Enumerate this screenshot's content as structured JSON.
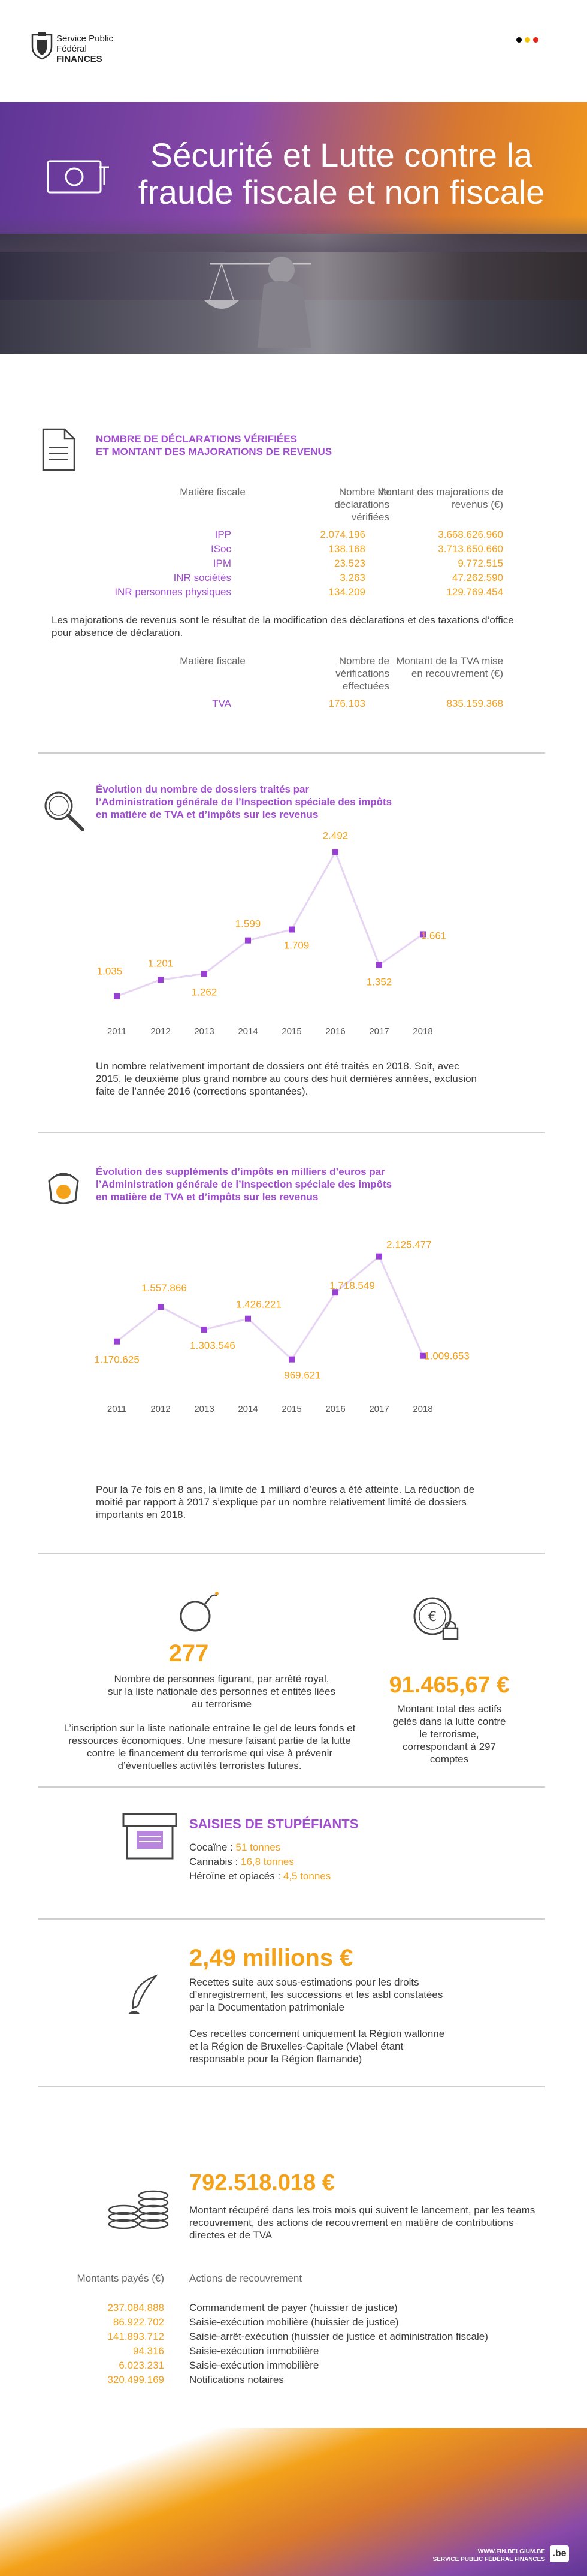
{
  "header": {
    "org_line1": "Service Public",
    "org_line2": "Fédéral",
    "org_line3": "FINANCES",
    "colors": [
      "#000000",
      "#f5c400",
      "#e3251b"
    ]
  },
  "hero": {
    "title_line1": "Sécurité et Lutte contre la",
    "title_line2": "fraude fiscale et non fiscale",
    "gradient": [
      "#6b3aa0",
      "#f29a1e"
    ]
  },
  "declarations": {
    "title_line1": "NOMBRE DE DÉCLARATIONS VÉRIFIÉES",
    "title_line2": "ET MONTANT DES MAJORATIONS DE REVENUS",
    "headers": [
      "Matière fiscale",
      "Nombre de déclarations vérifiées",
      "Montant des majorations de revenus (€)"
    ],
    "rows": [
      {
        "matiere": "IPP",
        "nombre": "2.074.196",
        "montant": "3.668.626.960"
      },
      {
        "matiere": "ISoc",
        "nombre": "138.168",
        "montant": "3.713.650.660"
      },
      {
        "matiere": "IPM",
        "nombre": "23.523",
        "montant": "9.772.515"
      },
      {
        "matiere": "INR sociétés",
        "nombre": "3.263",
        "montant": "47.262.590"
      },
      {
        "matiere": "INR personnes physiques",
        "nombre": "134.209",
        "montant": "129.769.454"
      }
    ],
    "note": "Les majorations de revenus sont le résultat de la modification des déclarations et des taxations d’office pour absence de déclaration.",
    "tva_headers": [
      "Matière fiscale",
      "Nombre de vérifications effectuées",
      "Montant de la TVA mise en recouvrement (€)"
    ],
    "tva_row": {
      "matiere": "TVA",
      "nombre": "176.103",
      "montant": "835.159.368"
    }
  },
  "dossiers": {
    "title_line1": "Évolution du nombre de dossiers traités par",
    "title_line2": "l’Administration générale de l’Inspection spéciale des impôts",
    "title_line3": "en matière de TVA et d’impôts sur les revenus",
    "chart_data": {
      "type": "line",
      "x": [
        "2011",
        "2012",
        "2013",
        "2014",
        "2015",
        "2016",
        "2017",
        "2018"
      ],
      "values": [
        1035,
        1201,
        1262,
        1599,
        1709,
        2492,
        1352,
        1661
      ],
      "labels": [
        "1.035",
        "1.201",
        "1.262",
        "1.599",
        "1.709",
        "2.492",
        "1.352",
        "1.661"
      ]
    },
    "text": "Un nombre relativement important de dossiers ont été traités en 2018. Soit, avec 2015, le deuxième plus grand nombre au cours des huit dernières années, exclusion faite de l’année 2016 (corrections spontanées)."
  },
  "supplements": {
    "title_line1": "Évolution des suppléments d’impôts en milliers d’euros par",
    "title_line2": "l’Administration générale de l’Inspection spéciale des impôts",
    "title_line3": "en matière de TVA et d’impôts sur les revenus",
    "chart_data": {
      "type": "line",
      "x": [
        "2011",
        "2012",
        "2013",
        "2014",
        "2015",
        "2016",
        "2017",
        "2018"
      ],
      "values": [
        1170625,
        1557866,
        1303546,
        1426221,
        969621,
        1718549,
        2125477,
        1009653
      ],
      "labels": [
        "1.170.625",
        "1.557.866",
        "1.303.546",
        "1.426.221",
        "969.621",
        "1.718.549",
        "2.125.477",
        "1.009.653"
      ]
    },
    "text": "Pour la 7e fois en 8 ans, la limite de 1 milliard d’euros a été atteinte. La réduction de moitié par rapport à 2017 s’explique par un nombre relativement limité de dossiers importants en 2018."
  },
  "terrorism": {
    "count": "277",
    "count_desc": "Nombre de personnes figurant, par arrêté royal, sur la liste nationale des personnes et entités liées au terrorisme",
    "text": "L’inscription sur la liste nationale entraîne le gel de leurs fonds et ressources économiques. Une mesure faisant partie de la lutte contre le financement du terrorisme qui vise à prévenir d’éventuelles activités terroristes futures.",
    "amount": "91.465,67 €",
    "amount_desc": "Montant total des actifs gelés dans la lutte contre le terrorisme, correspondant à 297 comptes"
  },
  "drugs": {
    "title": "SAISIES DE STUPÉFIANTS",
    "items": [
      {
        "label": "Cocaïne : ",
        "value": "51 tonnes"
      },
      {
        "label": "Cannabis : ",
        "value": "16,8 tonnes"
      },
      {
        "label": "Héroïne et opiacés : ",
        "value": "4,5 tonnes"
      }
    ]
  },
  "registration": {
    "amount": "2,49 millions €",
    "desc": "Recettes suite aux sous-estimations pour les droits d’enregistrement, les successions et les asbl constatées par la Documentation patrimoniale",
    "text": "Ces recettes concernent uniquement la Région wallonne et la Région de Bruxelles-Capitale (Vlabel étant responsable pour la Région flamande)"
  },
  "recovery": {
    "amount": "792.518.018 €",
    "desc": "Montant récupéré dans les trois mois qui suivent le lancement, par les teams recouvrement, des actions de recouvrement en matière de contributions directes et de TVA",
    "col_amount": "Montants payés (€)",
    "col_action": "Actions de recouvrement",
    "rows": [
      {
        "amount": "237.084.888",
        "action": "Commandement de payer (huissier de justice)"
      },
      {
        "amount": "86.922.702",
        "action": "Saisie-exécution mobilière (huissier de justice)"
      },
      {
        "amount": "141.893.712",
        "action": "Saisie-arrêt-exécution (huissier de justice et administration fiscale)"
      },
      {
        "amount": "94.316",
        "action": "Saisie-exécution immobilière"
      },
      {
        "amount": "6.023.231",
        "action": "Saisie-exécution immobilière"
      },
      {
        "amount": "320.499.169",
        "action": "Notifications notaires"
      }
    ]
  },
  "footer": {
    "url": "WWW.FIN.BELGIUM.BE",
    "org": "SERVICE PUBLIC FÉDÉRAL FINANCES",
    "badge": ".be"
  }
}
